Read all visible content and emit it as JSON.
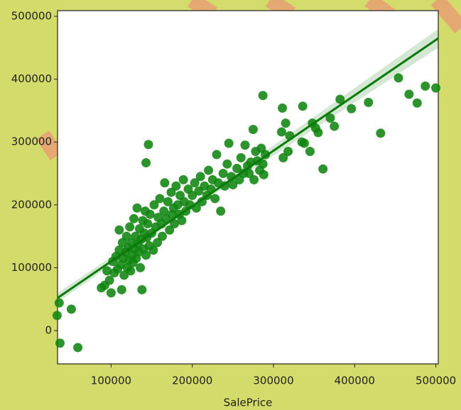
{
  "chart_data": {
    "type": "scatter",
    "x_label": "SalePrice",
    "color": "#108510",
    "x": [
      36000,
      33500,
      37000,
      51000,
      59000,
      146000,
      143000,
      287000,
      311000,
      336000,
      454000,
      467000,
      477000,
      487000,
      500000,
      432000,
      417000,
      396000,
      382000,
      361000,
      88000,
      92000,
      95000,
      98000,
      100000,
      102000,
      104000,
      106000,
      108000,
      110000,
      110000,
      112000,
      113000,
      114000,
      115000,
      116000,
      118000,
      119000,
      120000,
      121000,
      122000,
      123000,
      124000,
      125000,
      126000,
      127000,
      128000,
      129000,
      130000,
      131000,
      132000,
      133000,
      134000,
      135000,
      136000,
      137000,
      138000,
      139000,
      140000,
      141000,
      142000,
      143000,
      144000,
      145000,
      147000,
      148000,
      150000,
      152000,
      153000,
      155000,
      157000,
      158000,
      160000,
      162000,
      163000,
      165000,
      166000,
      168000,
      170000,
      172000,
      174000,
      175000,
      177000,
      178000,
      180000,
      182000,
      184000,
      185000,
      187000,
      189000,
      190000,
      192000,
      195000,
      197000,
      200000,
      203000,
      205000,
      208000,
      210000,
      212000,
      215000,
      218000,
      220000,
      223000,
      225000,
      228000,
      230000,
      232000,
      235000,
      238000,
      240000,
      243000,
      245000,
      248000,
      250000,
      255000,
      258000,
      260000,
      263000,
      265000,
      268000,
      270000,
      272000,
      275000,
      276000,
      278000,
      280000,
      283000,
      285000,
      287000,
      288000,
      290000,
      310000,
      312000,
      315000,
      318000,
      320000,
      335000,
      338000,
      345000,
      348000,
      352000,
      355000,
      375000,
      370000
    ],
    "values": [
      44000,
      24000,
      -20000,
      34000,
      -27000,
      296000,
      267000,
      374000,
      354000,
      357000,
      402000,
      376000,
      362000,
      389000,
      386000,
      314000,
      363000,
      353000,
      368000,
      257000,
      68000,
      72000,
      95000,
      80000,
      60000,
      110000,
      92000,
      118000,
      98000,
      160000,
      128000,
      105000,
      65000,
      140000,
      115000,
      88000,
      125000,
      150000,
      100000,
      132000,
      112000,
      165000,
      95000,
      140000,
      120000,
      108000,
      178000,
      130000,
      150000,
      115000,
      195000,
      138000,
      125000,
      162000,
      100000,
      145000,
      65000,
      175000,
      130000,
      155000,
      190000,
      120000,
      148000,
      170000,
      135000,
      185000,
      155000,
      128000,
      200000,
      165000,
      140000,
      180000,
      210000,
      170000,
      150000,
      190000,
      235000,
      178000,
      205000,
      160000,
      220000,
      185000,
      195000,
      170000,
      230000,
      200000,
      185000,
      215000,
      175000,
      240000,
      205000,
      190000,
      225000,
      200000,
      215000,
      235000,
      195000,
      222000,
      245000,
      205000,
      230000,
      215000,
      255000,
      225000,
      240000,
      210000,
      280000,
      235000,
      190000,
      250000,
      230000,
      265000,
      298000,
      245000,
      232000,
      258000,
      240000,
      275000,
      250000,
      295000,
      262000,
      250000,
      268000,
      320000,
      240000,
      285000,
      270000,
      255000,
      290000,
      265000,
      248000,
      280000,
      316000,
      275000,
      330000,
      285000,
      310000,
      300000,
      298000,
      285000,
      330000,
      322000,
      315000,
      325000,
      338000
    ],
    "xlim": [
      34000,
      503000
    ],
    "ylim": [
      -53000,
      509000
    ],
    "xticks": [
      100000,
      200000,
      300000,
      400000,
      500000
    ],
    "yticks": [
      0,
      100000,
      200000,
      300000,
      400000,
      500000
    ],
    "fit": {
      "color": "#0b7a0b",
      "x": [
        34000,
        200000,
        503000
      ],
      "values": [
        52000,
        198000,
        465000
      ],
      "lower": [
        45000,
        194000,
        450000
      ],
      "upper": [
        60000,
        203000,
        480000
      ]
    }
  }
}
